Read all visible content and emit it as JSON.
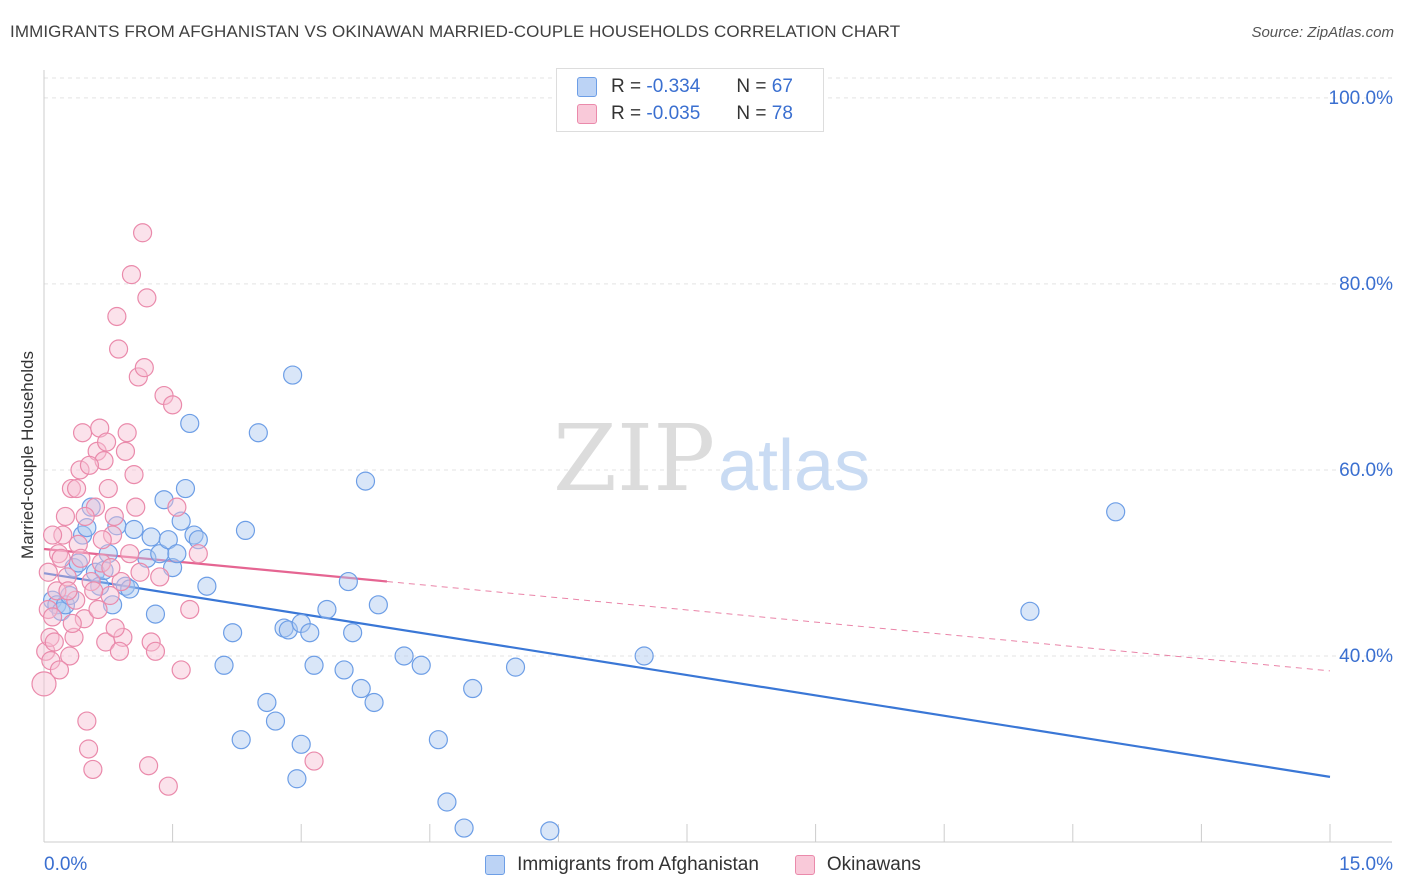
{
  "title": "IMMIGRANTS FROM AFGHANISTAN VS OKINAWAN MARRIED-COUPLE HOUSEHOLDS CORRELATION CHART",
  "source": "Source: ZipAtlas.com",
  "watermark": {
    "zip": "ZIP",
    "atlas": "atlas"
  },
  "stats": {
    "r_label": "R =",
    "n_label": "N =",
    "blue": {
      "r": "-0.334",
      "n": "67"
    },
    "pink": {
      "r": "-0.035",
      "n": "78"
    }
  },
  "legend": {
    "blue": "Immigrants from Afghanistan",
    "pink": "Okinawans"
  },
  "colors": {
    "blue_fill": "#aac7f0",
    "blue_stroke": "#6d9ee6",
    "blue_line": "#3a77d6",
    "pink_fill": "#f7bfd2",
    "pink_stroke": "#ea8aab",
    "pink_line": "#e56592",
    "tick_text": "#3a6fd0"
  },
  "chart_data": {
    "type": "scatter",
    "title": "IMMIGRANTS FROM AFGHANISTAN VS OKINAWAN MARRIED-COUPLE HOUSEHOLDS CORRELATION CHART",
    "xlabel": "",
    "ylabel": "Married-couple Households",
    "xlim": [
      0,
      15
    ],
    "ylim": [
      20,
      103
    ],
    "x_tick_labels": [
      "0.0%",
      "15.0%"
    ],
    "y_ticks": [
      40,
      60,
      80,
      100
    ],
    "y_tick_labels": [
      "40.0%",
      "60.0%",
      "80.0%",
      "100.0%"
    ],
    "series": [
      {
        "name": "Immigrants from Afghanistan",
        "color": "blue",
        "trend": {
          "x": [
            0,
            15
          ],
          "y": [
            48.9,
            27.0
          ],
          "dashed_from": null
        },
        "points": [
          [
            0.1,
            46.0
          ],
          [
            0.15,
            45.5
          ],
          [
            0.2,
            44.8
          ],
          [
            0.25,
            45.5
          ],
          [
            0.3,
            46.5
          ],
          [
            0.35,
            49.5
          ],
          [
            0.4,
            50.0
          ],
          [
            0.45,
            53.0
          ],
          [
            0.5,
            53.8
          ],
          [
            0.55,
            56.0
          ],
          [
            0.6,
            49.0
          ],
          [
            0.65,
            47.5
          ],
          [
            0.7,
            49.2
          ],
          [
            0.75,
            51.0
          ],
          [
            0.8,
            45.5
          ],
          [
            0.85,
            54.0
          ],
          [
            0.95,
            47.5
          ],
          [
            1.0,
            47.2
          ],
          [
            1.2,
            50.5
          ],
          [
            1.25,
            52.8
          ],
          [
            1.3,
            44.5
          ],
          [
            1.35,
            51.0
          ],
          [
            1.4,
            56.8
          ],
          [
            1.45,
            52.5
          ],
          [
            1.5,
            49.5
          ],
          [
            1.55,
            51.0
          ],
          [
            1.6,
            54.5
          ],
          [
            1.65,
            58.0
          ],
          [
            1.7,
            65.0
          ],
          [
            1.75,
            53.0
          ],
          [
            1.8,
            52.5
          ],
          [
            1.9,
            47.5
          ],
          [
            2.1,
            39.0
          ],
          [
            2.2,
            42.5
          ],
          [
            2.3,
            31.0
          ],
          [
            2.35,
            53.5
          ],
          [
            2.5,
            64.0
          ],
          [
            2.6,
            35.0
          ],
          [
            2.7,
            33.0
          ],
          [
            2.8,
            43.0
          ],
          [
            2.85,
            42.8
          ],
          [
            3.0,
            43.5
          ],
          [
            2.9,
            70.2
          ],
          [
            2.95,
            26.8
          ],
          [
            3.0,
            30.5
          ],
          [
            3.1,
            42.5
          ],
          [
            3.15,
            39.0
          ],
          [
            3.3,
            45.0
          ],
          [
            3.5,
            38.5
          ],
          [
            3.55,
            48.0
          ],
          [
            3.6,
            42.5
          ],
          [
            3.7,
            36.5
          ],
          [
            3.75,
            58.8
          ],
          [
            3.85,
            35.0
          ],
          [
            3.9,
            45.5
          ],
          [
            4.2,
            40.0
          ],
          [
            4.4,
            39.0
          ],
          [
            4.6,
            31.0
          ],
          [
            4.7,
            24.3
          ],
          [
            4.9,
            21.5
          ],
          [
            5.0,
            36.5
          ],
          [
            5.5,
            38.8
          ],
          [
            5.9,
            21.2
          ],
          [
            7.0,
            40.0
          ],
          [
            11.5,
            44.8
          ],
          [
            12.5,
            55.5
          ],
          [
            1.05,
            53.6
          ]
        ]
      },
      {
        "name": "Okinawans",
        "color": "pink",
        "trend": {
          "x": [
            0,
            15
          ],
          "y": [
            51.5,
            38.4
          ],
          "dashed_from": 4.0
        },
        "points": [
          [
            0.0,
            37.0
          ],
          [
            0.02,
            40.5
          ],
          [
            0.05,
            45.0
          ],
          [
            0.07,
            42.0
          ],
          [
            0.08,
            39.5
          ],
          [
            0.1,
            44.2
          ],
          [
            0.12,
            41.5
          ],
          [
            0.15,
            47.0
          ],
          [
            0.17,
            51.0
          ],
          [
            0.2,
            50.5
          ],
          [
            0.22,
            53.0
          ],
          [
            0.25,
            55.0
          ],
          [
            0.27,
            48.5
          ],
          [
            0.3,
            40.0
          ],
          [
            0.32,
            58.0
          ],
          [
            0.35,
            42.0
          ],
          [
            0.37,
            46.0
          ],
          [
            0.4,
            52.0
          ],
          [
            0.42,
            60.0
          ],
          [
            0.45,
            64.0
          ],
          [
            0.47,
            44.0
          ],
          [
            0.5,
            33.0
          ],
          [
            0.52,
            30.0
          ],
          [
            0.55,
            48.0
          ],
          [
            0.57,
            27.8
          ],
          [
            0.6,
            56.0
          ],
          [
            0.62,
            62.0
          ],
          [
            0.65,
            64.5
          ],
          [
            0.67,
            50.0
          ],
          [
            0.7,
            61.0
          ],
          [
            0.72,
            41.5
          ],
          [
            0.75,
            58.0
          ],
          [
            0.77,
            46.5
          ],
          [
            0.8,
            53.0
          ],
          [
            0.82,
            55.0
          ],
          [
            0.85,
            76.5
          ],
          [
            0.87,
            73.0
          ],
          [
            0.9,
            48.0
          ],
          [
            0.92,
            42.0
          ],
          [
            0.95,
            62.0
          ],
          [
            0.97,
            64.0
          ],
          [
            1.0,
            51.0
          ],
          [
            1.02,
            81.0
          ],
          [
            1.05,
            59.5
          ],
          [
            1.07,
            56.0
          ],
          [
            1.1,
            70.0
          ],
          [
            1.12,
            49.0
          ],
          [
            1.15,
            85.5
          ],
          [
            1.17,
            71.0
          ],
          [
            1.2,
            78.5
          ],
          [
            1.22,
            28.2
          ],
          [
            1.25,
            41.5
          ],
          [
            1.3,
            40.5
          ],
          [
            1.35,
            48.5
          ],
          [
            1.4,
            68.0
          ],
          [
            1.45,
            26.0
          ],
          [
            1.5,
            67.0
          ],
          [
            1.55,
            56.0
          ],
          [
            1.6,
            38.5
          ],
          [
            1.7,
            45.0
          ],
          [
            1.8,
            51.0
          ],
          [
            3.15,
            28.7
          ],
          [
            0.05,
            49.0
          ],
          [
            0.1,
            53.0
          ],
          [
            0.18,
            38.5
          ],
          [
            0.28,
            47.0
          ],
          [
            0.33,
            43.5
          ],
          [
            0.38,
            58.0
          ],
          [
            0.43,
            50.5
          ],
          [
            0.48,
            55.0
          ],
          [
            0.53,
            60.5
          ],
          [
            0.58,
            47.0
          ],
          [
            0.63,
            45.0
          ],
          [
            0.68,
            52.5
          ],
          [
            0.73,
            63.0
          ],
          [
            0.78,
            49.5
          ],
          [
            0.83,
            43.0
          ],
          [
            0.88,
            40.5
          ]
        ]
      }
    ]
  }
}
